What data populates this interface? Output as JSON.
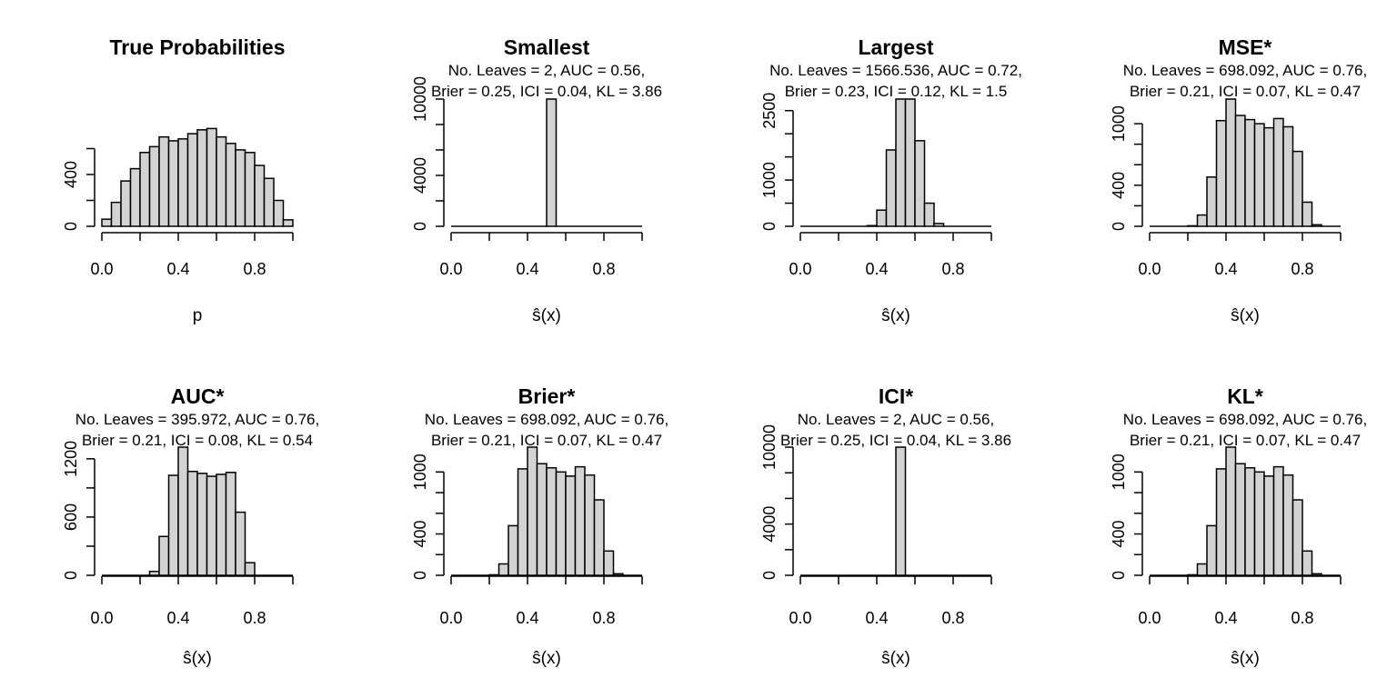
{
  "chart_data": [
    {
      "type": "bar",
      "title": "True Probabilities",
      "subtitle_lines": [],
      "xlabel": "p",
      "ylabel": "",
      "x_bin_edges": [
        0.0,
        0.05,
        0.1,
        0.15,
        0.2,
        0.25,
        0.3,
        0.35,
        0.4,
        0.45,
        0.5,
        0.55,
        0.6,
        0.65,
        0.7,
        0.75,
        0.8,
        0.85,
        0.9,
        0.95,
        1.0
      ],
      "values": [
        55,
        185,
        350,
        445,
        570,
        615,
        690,
        660,
        675,
        715,
        745,
        755,
        690,
        640,
        590,
        570,
        470,
        370,
        200,
        50
      ],
      "xlim": [
        0,
        1
      ],
      "ylim": [
        0,
        800
      ],
      "xticks": [
        0.0,
        0.4,
        0.8
      ],
      "xtick_labels": [
        "0.0",
        "0.4",
        "0.8"
      ],
      "yticks": [
        0,
        400
      ],
      "ytick_labels": [
        "0",
        "400"
      ],
      "y_minor_ticks": [
        200,
        600
      ]
    },
    {
      "type": "bar",
      "title": "Smallest",
      "subtitle_lines": [
        "No. Leaves = 2, AUC = 0.56,",
        "Brier = 0.25, ICI = 0.04, KL = 3.86"
      ],
      "xlabel": "ŝ(x)",
      "ylabel": "",
      "x_bin_edges": [
        0.0,
        0.05,
        0.1,
        0.15,
        0.2,
        0.25,
        0.3,
        0.35,
        0.4,
        0.45,
        0.5,
        0.55,
        0.6,
        0.65,
        0.7,
        0.75,
        0.8,
        0.85,
        0.9,
        0.95,
        1.0
      ],
      "values": [
        0,
        0,
        0,
        0,
        0,
        0,
        0,
        0,
        0,
        0,
        10000,
        0,
        0,
        0,
        0,
        0,
        0,
        0,
        0,
        0
      ],
      "xlim": [
        0,
        1
      ],
      "ylim": [
        0,
        10000
      ],
      "xticks": [
        0.0,
        0.4,
        0.8
      ],
      "xtick_labels": [
        "0.0",
        "0.4",
        "0.8"
      ],
      "yticks": [
        0,
        4000,
        10000
      ],
      "ytick_labels": [
        "0",
        "4000",
        "10000"
      ],
      "y_minor_ticks": [
        2000,
        6000,
        8000
      ]
    },
    {
      "type": "bar",
      "title": "Largest",
      "subtitle_lines": [
        "No. Leaves = 1566.536, AUC = 0.72,",
        "Brier = 0.23, ICI = 0.12, KL = 1.5"
      ],
      "xlabel": "ŝ(x)",
      "ylabel": "",
      "x_bin_edges": [
        0.0,
        0.05,
        0.1,
        0.15,
        0.2,
        0.25,
        0.3,
        0.35,
        0.4,
        0.45,
        0.5,
        0.55,
        0.6,
        0.65,
        0.7,
        0.75,
        0.8,
        0.85,
        0.9,
        0.95,
        1.0
      ],
      "values": [
        0,
        0,
        0,
        0,
        0,
        0,
        0,
        15,
        350,
        1650,
        2750,
        2750,
        1850,
        500,
        60,
        0,
        0,
        0,
        0,
        0
      ],
      "xlim": [
        0,
        1
      ],
      "ylim": [
        0,
        2750
      ],
      "xticks": [
        0.0,
        0.4,
        0.8
      ],
      "xtick_labels": [
        "0.0",
        "0.4",
        "0.8"
      ],
      "yticks": [
        0,
        1000,
        2500
      ],
      "ytick_labels": [
        "0",
        "1000",
        "2500"
      ],
      "y_minor_ticks": [
        500,
        1500,
        2000
      ]
    },
    {
      "type": "bar",
      "title": "MSE*",
      "subtitle_lines": [
        "No. Leaves = 698.092, AUC = 0.76,",
        "Brier = 0.21, ICI = 0.07, KL = 0.47"
      ],
      "xlabel": "ŝ(x)",
      "ylabel": "",
      "x_bin_edges": [
        0.0,
        0.05,
        0.1,
        0.15,
        0.2,
        0.25,
        0.3,
        0.35,
        0.4,
        0.45,
        0.5,
        0.55,
        0.6,
        0.65,
        0.7,
        0.75,
        0.8,
        0.85,
        0.9,
        0.95,
        1.0
      ],
      "values": [
        0,
        0,
        0,
        0,
        5,
        110,
        480,
        1030,
        1240,
        1080,
        1040,
        1000,
        960,
        1050,
        970,
        730,
        235,
        15,
        0,
        0
      ],
      "xlim": [
        0,
        1
      ],
      "ylim": [
        0,
        1240
      ],
      "xticks": [
        0.0,
        0.4,
        0.8
      ],
      "xtick_labels": [
        "0.0",
        "0.4",
        "0.8"
      ],
      "yticks": [
        0,
        400,
        1000
      ],
      "ytick_labels": [
        "0",
        "400",
        "1000"
      ],
      "y_minor_ticks": [
        200,
        600,
        800
      ]
    },
    {
      "type": "bar",
      "title": "AUC*",
      "subtitle_lines": [
        "No. Leaves = 395.972, AUC = 0.76,",
        "Brier = 0.21, ICI = 0.08, KL = 0.54"
      ],
      "xlabel": "ŝ(x)",
      "ylabel": "",
      "x_bin_edges": [
        0.0,
        0.05,
        0.1,
        0.15,
        0.2,
        0.25,
        0.3,
        0.35,
        0.4,
        0.45,
        0.5,
        0.55,
        0.6,
        0.65,
        0.7,
        0.75,
        0.8,
        0.85,
        0.9,
        0.95,
        1.0
      ],
      "values": [
        0,
        0,
        0,
        0,
        0,
        40,
        400,
        1030,
        1320,
        1070,
        1050,
        1020,
        1040,
        1060,
        650,
        130,
        0,
        0,
        0,
        0
      ],
      "xlim": [
        0,
        1
      ],
      "ylim": [
        0,
        1320
      ],
      "xticks": [
        0.0,
        0.4,
        0.8
      ],
      "xtick_labels": [
        "0.0",
        "0.4",
        "0.8"
      ],
      "yticks": [
        0,
        600,
        1200
      ],
      "ytick_labels": [
        "0",
        "600",
        "1200"
      ],
      "y_minor_ticks": [
        300,
        900
      ]
    },
    {
      "type": "bar",
      "title": "Brier*",
      "subtitle_lines": [
        "No. Leaves = 698.092, AUC = 0.76,",
        "Brier = 0.21, ICI = 0.07, KL = 0.47"
      ],
      "xlabel": "ŝ(x)",
      "ylabel": "",
      "x_bin_edges": [
        0.0,
        0.05,
        0.1,
        0.15,
        0.2,
        0.25,
        0.3,
        0.35,
        0.4,
        0.45,
        0.5,
        0.55,
        0.6,
        0.65,
        0.7,
        0.75,
        0.8,
        0.85,
        0.9,
        0.95,
        1.0
      ],
      "values": [
        0,
        0,
        0,
        0,
        5,
        110,
        480,
        1030,
        1240,
        1080,
        1040,
        1000,
        960,
        1050,
        970,
        730,
        235,
        15,
        0,
        0
      ],
      "xlim": [
        0,
        1
      ],
      "ylim": [
        0,
        1240
      ],
      "xticks": [
        0.0,
        0.4,
        0.8
      ],
      "xtick_labels": [
        "0.0",
        "0.4",
        "0.8"
      ],
      "yticks": [
        0,
        400,
        1000
      ],
      "ytick_labels": [
        "0",
        "400",
        "1000"
      ],
      "y_minor_ticks": [
        200,
        600,
        800
      ]
    },
    {
      "type": "bar",
      "title": "ICI*",
      "subtitle_lines": [
        "No. Leaves = 2, AUC = 0.56,",
        "Brier = 0.25, ICI = 0.04, KL = 3.86"
      ],
      "xlabel": "ŝ(x)",
      "ylabel": "",
      "x_bin_edges": [
        0.0,
        0.05,
        0.1,
        0.15,
        0.2,
        0.25,
        0.3,
        0.35,
        0.4,
        0.45,
        0.5,
        0.55,
        0.6,
        0.65,
        0.7,
        0.75,
        0.8,
        0.85,
        0.9,
        0.95,
        1.0
      ],
      "values": [
        0,
        0,
        0,
        0,
        0,
        0,
        0,
        0,
        0,
        0,
        10000,
        0,
        0,
        0,
        0,
        0,
        0,
        0,
        0,
        0
      ],
      "xlim": [
        0,
        1
      ],
      "ylim": [
        0,
        10000
      ],
      "xticks": [
        0.0,
        0.4,
        0.8
      ],
      "xtick_labels": [
        "0.0",
        "0.4",
        "0.8"
      ],
      "yticks": [
        0,
        4000,
        10000
      ],
      "ytick_labels": [
        "0",
        "4000",
        "10000"
      ],
      "y_minor_ticks": [
        2000,
        6000,
        8000
      ]
    },
    {
      "type": "bar",
      "title": "KL*",
      "subtitle_lines": [
        "No. Leaves = 698.092, AUC = 0.76,",
        "Brier = 0.21, ICI = 0.07, KL = 0.47"
      ],
      "xlabel": "ŝ(x)",
      "ylabel": "",
      "x_bin_edges": [
        0.0,
        0.05,
        0.1,
        0.15,
        0.2,
        0.25,
        0.3,
        0.35,
        0.4,
        0.45,
        0.5,
        0.55,
        0.6,
        0.65,
        0.7,
        0.75,
        0.8,
        0.85,
        0.9,
        0.95,
        1.0
      ],
      "values": [
        0,
        0,
        0,
        0,
        5,
        110,
        480,
        1030,
        1240,
        1080,
        1040,
        1000,
        960,
        1050,
        970,
        730,
        235,
        15,
        0,
        0
      ],
      "xlim": [
        0,
        1
      ],
      "ylim": [
        0,
        1240
      ],
      "xticks": [
        0.0,
        0.4,
        0.8
      ],
      "xtick_labels": [
        "0.0",
        "0.4",
        "0.8"
      ],
      "yticks": [
        0,
        400,
        1000
      ],
      "ytick_labels": [
        "0",
        "400",
        "1000"
      ],
      "y_minor_ticks": [
        200,
        600,
        800
      ]
    }
  ],
  "colors": {
    "bar_fill": "#d3d3d3",
    "bar_stroke": "#000000",
    "background": "#ffffff"
  }
}
